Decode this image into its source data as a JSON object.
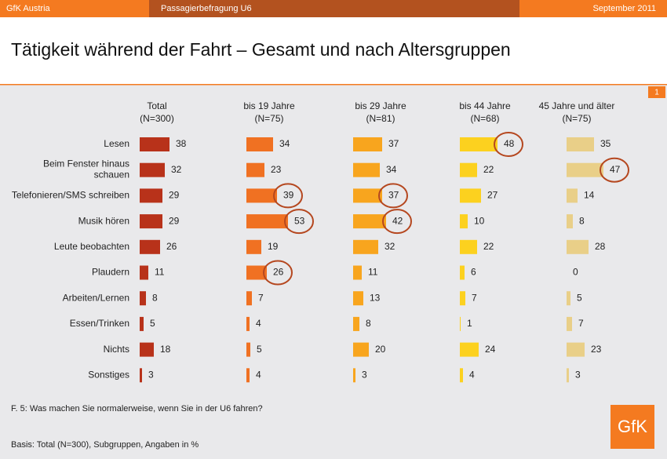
{
  "header": {
    "left": "GfK Austria",
    "middle": "Passagierbefragung U6",
    "right": "September 2011",
    "page": "1"
  },
  "chart_data": {
    "type": "bar",
    "title": "Tätigkeit während der Fahrt – Gesamt und nach Altersgruppen",
    "categories": [
      "Lesen",
      "Beim Fenster hinaus\nschauen",
      "Telefonieren/SMS schreiben",
      "Musik hören",
      "Leute beobachten",
      "Plaudern",
      "Arbeiten/Lernen",
      "Essen/Trinken",
      "Nichts",
      "Sonstiges"
    ],
    "series": [
      {
        "name": "Total",
        "subtitle": "(N=300)",
        "color": "#b8321a",
        "values": [
          38,
          32,
          29,
          29,
          26,
          11,
          8,
          5,
          18,
          3
        ],
        "circled": []
      },
      {
        "name": "bis 19 Jahre",
        "subtitle": "(N=75)",
        "color": "#f07122",
        "values": [
          34,
          23,
          39,
          53,
          19,
          26,
          7,
          4,
          5,
          4
        ],
        "circled": [
          2,
          3,
          5
        ]
      },
      {
        "name": "bis 29 Jahre",
        "subtitle": "(N=81)",
        "color": "#f8a51e",
        "values": [
          37,
          34,
          37,
          42,
          32,
          11,
          13,
          8,
          20,
          3
        ],
        "circled": [
          2,
          3
        ]
      },
      {
        "name": "bis 44 Jahre",
        "subtitle": "(N=68)",
        "color": "#fcd11f",
        "values": [
          48,
          22,
          27,
          10,
          22,
          6,
          7,
          1,
          24,
          4
        ],
        "circled": [
          0
        ]
      },
      {
        "name": "45 Jahre und älter",
        "subtitle": "(N=75)",
        "color": "#e9cf88",
        "values": [
          35,
          47,
          14,
          8,
          28,
          0,
          5,
          7,
          23,
          3
        ],
        "circled": [
          1
        ]
      }
    ]
  },
  "footer": {
    "question": "F. 5: Was machen Sie normalerweise, wenn Sie in der U6 fahren?",
    "basis": "Basis: Total (N=300), Subgruppen, Angaben in %",
    "logo": "GfK"
  }
}
